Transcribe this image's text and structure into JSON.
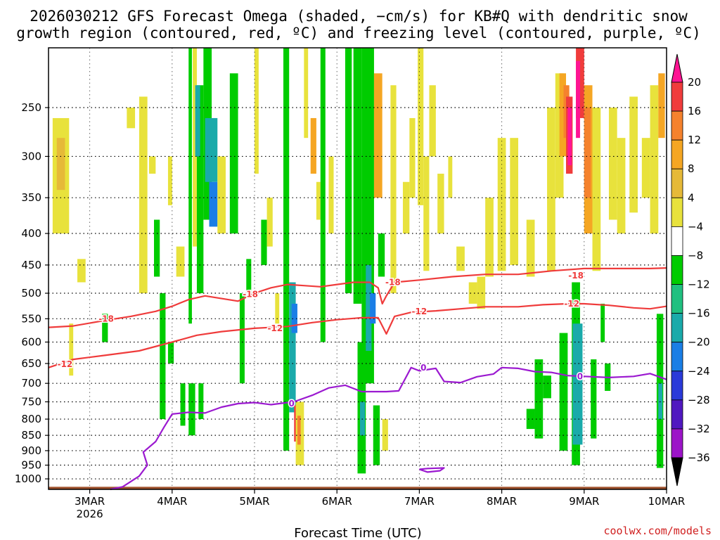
{
  "chart_data": {
    "type": "heatmap",
    "title_line1": "2026030212 GFS Forecast Omega (shaded, −cm/s) for KB#Q with dendritic snow",
    "title_line2": "growth region (contoured, red, ºC) and freezing level (contoured, purple, ºC)",
    "xlabel": "Forecast Time (UTC)",
    "credit": "coolwx.com/models",
    "x_range": [
      2.5,
      10.0
    ],
    "x_ticks": [
      {
        "v": 3,
        "label": "3MAR",
        "sub": "2026"
      },
      {
        "v": 4,
        "label": "4MAR",
        "sub": ""
      },
      {
        "v": 5,
        "label": "5MAR",
        "sub": ""
      },
      {
        "v": 6,
        "label": "6MAR",
        "sub": ""
      },
      {
        "v": 7,
        "label": "7MAR",
        "sub": ""
      },
      {
        "v": 8,
        "label": "8MAR",
        "sub": ""
      },
      {
        "v": 9,
        "label": "9MAR",
        "sub": ""
      },
      {
        "v": 10,
        "label": "10MAR",
        "sub": ""
      }
    ],
    "y_range_hpa": [
      200,
      1040
    ],
    "y_scale": "log",
    "y_ticks": [
      250,
      300,
      350,
      400,
      450,
      500,
      550,
      600,
      650,
      700,
      750,
      800,
      850,
      900,
      950,
      1000
    ],
    "grid": true,
    "colorbar": {
      "ticks": [
        "20",
        "16",
        "12",
        "8",
        "4",
        "−4",
        "−8",
        "−12",
        "−16",
        "−20",
        "−24",
        "−28",
        "−32",
        "−36"
      ],
      "bins": [
        {
          "color": "#ff1493"
        },
        {
          "color": "#f03c3c"
        },
        {
          "color": "#f5822d"
        },
        {
          "color": "#f5a623"
        },
        {
          "color": "#e6b938"
        },
        {
          "color": "#e8e23c"
        },
        {
          "color": "#ffffff"
        },
        {
          "color": "#00cc00"
        },
        {
          "color": "#20c080"
        },
        {
          "color": "#1aaaaa"
        },
        {
          "color": "#1a7ee6"
        },
        {
          "color": "#2a3ad9"
        },
        {
          "color": "#5018c0"
        },
        {
          "color": "#9c14c8"
        },
        {
          "color": "#a0a0a0"
        }
      ]
    },
    "contours": [
      {
        "level": "-18",
        "color": "#ef3b3b",
        "label_at": [
          [
            3.2,
            550
          ],
          [
            4.95,
            502
          ],
          [
            6.68,
            480
          ],
          [
            8.9,
            468
          ]
        ],
        "points": [
          [
            2.5,
            568
          ],
          [
            2.8,
            565
          ],
          [
            3.2,
            553
          ],
          [
            3.5,
            545
          ],
          [
            3.8,
            535
          ],
          [
            4.0,
            525
          ],
          [
            4.2,
            512
          ],
          [
            4.4,
            505
          ],
          [
            4.6,
            510
          ],
          [
            4.8,
            515
          ],
          [
            5.0,
            500
          ],
          [
            5.2,
            490
          ],
          [
            5.4,
            484
          ],
          [
            5.6,
            486
          ],
          [
            5.8,
            488
          ],
          [
            6.0,
            484
          ],
          [
            6.2,
            480
          ],
          [
            6.4,
            480
          ],
          [
            6.5,
            490
          ],
          [
            6.55,
            520
          ],
          [
            6.6,
            505
          ],
          [
            6.7,
            480
          ],
          [
            7.0,
            476
          ],
          [
            7.4,
            470
          ],
          [
            7.8,
            466
          ],
          [
            8.2,
            466
          ],
          [
            8.6,
            460
          ],
          [
            9.0,
            456
          ],
          [
            9.4,
            456
          ],
          [
            9.8,
            456
          ],
          [
            10.0,
            455
          ]
        ]
      },
      {
        "level": "-12",
        "color": "#ef3b3b",
        "label_at": [
          [
            2.7,
            652
          ],
          [
            5.25,
            570
          ],
          [
            7.0,
            535
          ],
          [
            8.85,
            520
          ]
        ],
        "points": [
          [
            2.5,
            660
          ],
          [
            2.8,
            640
          ],
          [
            3.2,
            630
          ],
          [
            3.6,
            620
          ],
          [
            4.0,
            600
          ],
          [
            4.3,
            585
          ],
          [
            4.6,
            577
          ],
          [
            5.0,
            570
          ],
          [
            5.4,
            566
          ],
          [
            5.7,
            558
          ],
          [
            6.0,
            552
          ],
          [
            6.3,
            548
          ],
          [
            6.5,
            548
          ],
          [
            6.6,
            582
          ],
          [
            6.7,
            545
          ],
          [
            6.9,
            537
          ],
          [
            7.2,
            534
          ],
          [
            7.5,
            530
          ],
          [
            7.8,
            526
          ],
          [
            8.2,
            526
          ],
          [
            8.5,
            522
          ],
          [
            8.8,
            520
          ],
          [
            9.0,
            520
          ],
          [
            9.3,
            523
          ],
          [
            9.6,
            528
          ],
          [
            9.8,
            530
          ],
          [
            10.0,
            525
          ]
        ]
      },
      {
        "level": "0",
        "color": "#9b19d0",
        "label_at": [
          [
            5.45,
            755
          ],
          [
            7.05,
            660
          ],
          [
            8.95,
            682
          ]
        ],
        "points": [
          [
            3.25,
            1040
          ],
          [
            3.4,
            1030
          ],
          [
            3.6,
            990
          ],
          [
            3.7,
            950
          ],
          [
            3.65,
            905
          ],
          [
            3.8,
            870
          ],
          [
            3.9,
            825
          ],
          [
            4.0,
            785
          ],
          [
            4.2,
            780
          ],
          [
            4.4,
            782
          ],
          [
            4.6,
            765
          ],
          [
            4.8,
            755
          ],
          [
            5.0,
            752
          ],
          [
            5.2,
            758
          ],
          [
            5.4,
            752
          ],
          [
            5.5,
            748
          ],
          [
            5.7,
            732
          ],
          [
            5.9,
            712
          ],
          [
            6.1,
            705
          ],
          [
            6.3,
            722
          ],
          [
            6.6,
            722
          ],
          [
            6.75,
            720
          ],
          [
            6.9,
            660
          ],
          [
            7.0,
            668
          ],
          [
            7.2,
            662
          ],
          [
            7.3,
            695
          ],
          [
            7.5,
            698
          ],
          [
            7.7,
            683
          ],
          [
            7.9,
            676
          ],
          [
            8.0,
            660
          ],
          [
            8.2,
            662
          ],
          [
            8.4,
            670
          ],
          [
            8.6,
            672
          ],
          [
            8.8,
            680
          ],
          [
            9.0,
            682
          ],
          [
            9.3,
            685
          ],
          [
            9.6,
            682
          ],
          [
            9.8,
            675
          ],
          [
            10.0,
            690
          ]
        ]
      },
      {
        "level": "0",
        "color": "#9b19d0",
        "label_at": [],
        "points": [
          [
            7.0,
            965
          ],
          [
            7.1,
            975
          ],
          [
            7.25,
            970
          ],
          [
            7.3,
            960
          ],
          [
            7.1,
            962
          ],
          [
            7.0,
            965
          ]
        ]
      }
    ]
  }
}
